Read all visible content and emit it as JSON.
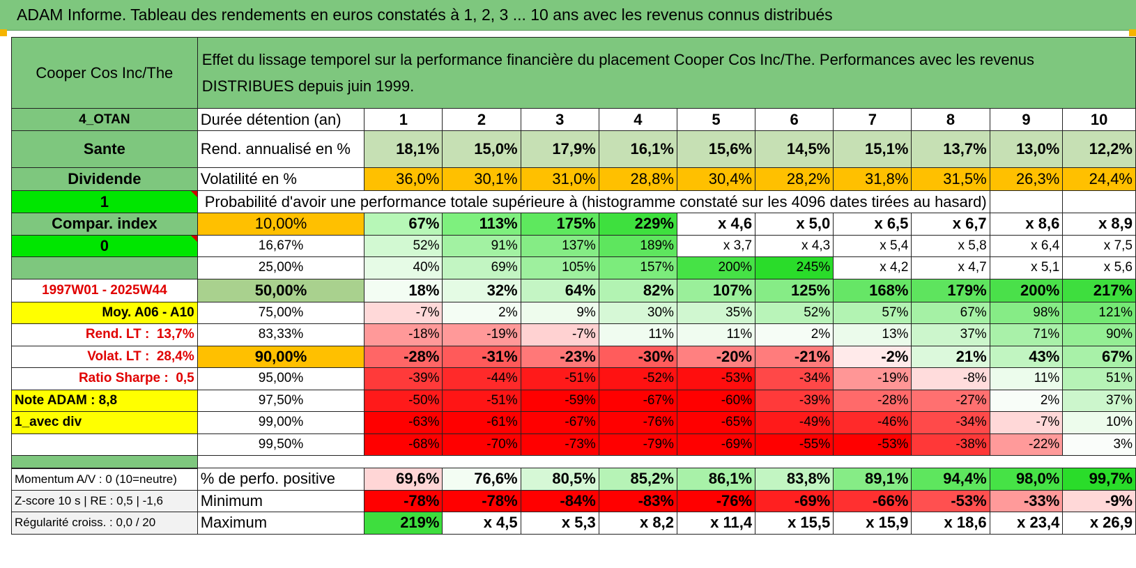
{
  "title": "ADAM Informe. Tableau des rendements en euros constatés à 1, 2, 3 ... 10 ans avec les revenus connus distribués",
  "header": {
    "asset": "Cooper Cos Inc/The",
    "description_line1": "Effet du lissage temporel sur la performance financière du placement Cooper Cos Inc/The. Performances avec les revenus",
    "description_line2": "DISTRIBUES depuis juin 1999."
  },
  "side": {
    "code": "4_OTAN",
    "sector": "Sante",
    "type": "Dividende",
    "flag1": "1",
    "compar_index": "Compar. index",
    "flag2": "0",
    "period": "1997W01 - 2025W44",
    "moy": "Moy. A06 - A10",
    "rend_lt_label": "Rend. LT :",
    "rend_lt_value": "13,7%",
    "volat_lt_label": "Volat. LT :",
    "volat_lt_value": "28,4%",
    "sharpe_label": "Ratio Sharpe :",
    "sharpe_value": "0,5",
    "note": "Note ADAM : 8,8",
    "avec_div": "1_avec div"
  },
  "stats_rows": {
    "duration_label": "Durée détention (an)",
    "years": [
      "1",
      "2",
      "3",
      "4",
      "5",
      "6",
      "7",
      "8",
      "9",
      "10"
    ],
    "rend_label": "Rend. annualisé en %",
    "rend": [
      "18,1%",
      "15,0%",
      "17,9%",
      "16,1%",
      "15,6%",
      "14,5%",
      "15,1%",
      "13,7%",
      "13,0%",
      "12,2%"
    ],
    "vol_label": "Volatilité en %",
    "vol": [
      "36,0%",
      "30,1%",
      "31,0%",
      "28,8%",
      "30,4%",
      "28,2%",
      "31,8%",
      "31,5%",
      "26,3%",
      "24,4%"
    ]
  },
  "probability_title": "Probabilité d'avoir une performance totale supérieure à (histogramme constaté sur les 4096 dates tirées au hasard)",
  "prob_rows": [
    {
      "p": "10,00%",
      "v": [
        "67%",
        "113%",
        "175%",
        "229%",
        "x 4,6",
        "x 5,0",
        "x 6,5",
        "x 6,7",
        "x 8,6",
        "x 8,9"
      ]
    },
    {
      "p": "16,67%",
      "v": [
        "52%",
        "91%",
        "137%",
        "189%",
        "x 3,7",
        "x 4,3",
        "x 5,4",
        "x 5,8",
        "x 6,4",
        "x 7,5"
      ]
    },
    {
      "p": "25,00%",
      "v": [
        "40%",
        "69%",
        "105%",
        "157%",
        "200%",
        "245%",
        "x 4,2",
        "x 4,7",
        "x 5,1",
        "x 5,6"
      ]
    },
    {
      "p": "50,00%",
      "v": [
        "18%",
        "32%",
        "64%",
        "82%",
        "107%",
        "125%",
        "168%",
        "179%",
        "200%",
        "217%"
      ]
    },
    {
      "p": "75,00%",
      "v": [
        "-7%",
        "2%",
        "9%",
        "30%",
        "35%",
        "52%",
        "57%",
        "67%",
        "98%",
        "121%"
      ]
    },
    {
      "p": "83,33%",
      "v": [
        "-18%",
        "-19%",
        "-7%",
        "11%",
        "11%",
        "2%",
        "13%",
        "37%",
        "71%",
        "90%"
      ]
    },
    {
      "p": "90,00%",
      "v": [
        "-28%",
        "-31%",
        "-23%",
        "-30%",
        "-20%",
        "-21%",
        "-2%",
        "21%",
        "43%",
        "67%"
      ]
    },
    {
      "p": "95,00%",
      "v": [
        "-39%",
        "-44%",
        "-51%",
        "-52%",
        "-53%",
        "-34%",
        "-19%",
        "-8%",
        "11%",
        "51%"
      ]
    },
    {
      "p": "97,50%",
      "v": [
        "-50%",
        "-51%",
        "-59%",
        "-67%",
        "-60%",
        "-39%",
        "-28%",
        "-27%",
        "2%",
        "37%"
      ]
    },
    {
      "p": "99,00%",
      "v": [
        "-63%",
        "-61%",
        "-67%",
        "-76%",
        "-65%",
        "-49%",
        "-46%",
        "-34%",
        "-7%",
        "10%"
      ]
    },
    {
      "p": "99,50%",
      "v": [
        "-68%",
        "-70%",
        "-73%",
        "-79%",
        "-69%",
        "-55%",
        "-53%",
        "-38%",
        "-22%",
        "3%"
      ]
    }
  ],
  "bottom_rows": [
    {
      "side": "Momentum A/V : 0 (10=neutre)",
      "label": "% de perfo. positive",
      "v": [
        "69,6%",
        "76,6%",
        "80,5%",
        "85,2%",
        "86,1%",
        "83,8%",
        "89,1%",
        "94,4%",
        "98,0%",
        "99,7%"
      ]
    },
    {
      "side": "Z-score 10 s | RE : 0,5 | -1,6",
      "label": "Minimum",
      "v": [
        "-78%",
        "-78%",
        "-84%",
        "-83%",
        "-76%",
        "-69%",
        "-66%",
        "-53%",
        "-33%",
        "-9%"
      ]
    },
    {
      "side": "Régularité croiss. : 0,0 / 20",
      "label": "Maximum",
      "v": [
        "219%",
        "x 4,5",
        "x 5,3",
        "x 8,2",
        "x 11,4",
        "x 15,5",
        "x 15,9",
        "x 18,6",
        "x 23,4",
        "x 26,9"
      ]
    }
  ],
  "colors": {
    "header_green": "#7ec77e",
    "light_green": "#a9d18e",
    "bright_green": "#00e600",
    "yellow": "#ffff00",
    "orange": "#ffc000",
    "red_text": "#e00000"
  },
  "cell_colors": {
    "rend": [
      "#c6e0b4",
      "#c6e0b4",
      "#c6e0b4",
      "#c6e0b4",
      "#c6e0b4",
      "#c6e0b4",
      "#c6e0b4",
      "#c6e0b4",
      "#c6e0b4",
      "#c6e0b4"
    ],
    "vol": [
      "#ffc000",
      "#ffc000",
      "#ffc000",
      "#ffc000",
      "#ffc000",
      "#ffc000",
      "#ffc000",
      "#ffc000",
      "#ffc000",
      "#ffc000"
    ],
    "prob": [
      [
        "#b7f7b7",
        "#7ef07e",
        "#5ee85e",
        "#3ee03e",
        "#ffffff",
        "#ffffff",
        "#ffffff",
        "#ffffff",
        "#ffffff",
        "#ffffff"
      ],
      [
        "#d2f9d2",
        "#a2f2a2",
        "#85ec85",
        "#5ee65e",
        "#ffffff",
        "#ffffff",
        "#ffffff",
        "#ffffff",
        "#ffffff",
        "#ffffff"
      ],
      [
        "#e6fbe6",
        "#c2f5c2",
        "#9ef09e",
        "#7cec7c",
        "#46e246",
        "#2adc2a",
        "#ffffff",
        "#ffffff",
        "#ffffff",
        "#ffffff"
      ],
      [
        "#f3fdf3",
        "#e4fbe4",
        "#c4f5c4",
        "#b2f3b2",
        "#9aef9a",
        "#86ec86",
        "#66e666",
        "#5ee45e",
        "#4ae04a",
        "#3ede3e"
      ],
      [
        "#ffd9d9",
        "#f4fdf4",
        "#eefced",
        "#d6f8d6",
        "#d0f7d0",
        "#b9f4b9",
        "#b2f3b2",
        "#a5f1a5",
        "#86ec86",
        "#74e974"
      ],
      [
        "#ff9999",
        "#ff9999",
        "#ffd2d2",
        "#f0fcf0",
        "#f0fcf0",
        "#f6fdf6",
        "#ebfbeb",
        "#ccf6cc",
        "#a9f1a9",
        "#94ee94"
      ],
      [
        "#ff6666",
        "#ff5a5a",
        "#ff7878",
        "#ff5c5c",
        "#ff8080",
        "#ff7c7c",
        "#ffeaea",
        "#dcf9dc",
        "#c1f5c1",
        "#a8f1a8"
      ],
      [
        "#ff3a3a",
        "#ff2a2a",
        "#ff1a1a",
        "#ff1212",
        "#ff0e0e",
        "#ff4848",
        "#ff9696",
        "#ffdcdc",
        "#ecfcec",
        "#b6f3b6"
      ],
      [
        "#ff1a1a",
        "#ff1515",
        "#ff0000",
        "#ff0000",
        "#ff0000",
        "#ff3a3a",
        "#ff6a6a",
        "#ff7070",
        "#f8fdf8",
        "#ccf6cc"
      ],
      [
        "#ff0000",
        "#ff0000",
        "#ff0000",
        "#ff0000",
        "#ff0000",
        "#ff1a1a",
        "#ff2a2a",
        "#ff4a4a",
        "#ffd8d8",
        "#edfcec"
      ],
      [
        "#ff0000",
        "#ff0000",
        "#ff0000",
        "#ff0000",
        "#ff0000",
        "#ff0000",
        "#ff0000",
        "#ff3838",
        "#ff9a9a",
        "#fafdfa"
      ]
    ],
    "bottom": [
      [
        "#ffd6d6",
        "#f3fdf3",
        "#d6f8d6",
        "#b6f3b6",
        "#a8f1a8",
        "#c2f5c2",
        "#86ec86",
        "#5ee65e",
        "#46e246",
        "#2adc2a"
      ],
      [
        "#ff0000",
        "#ff0000",
        "#ff0000",
        "#ff0000",
        "#ff0000",
        "#ff2020",
        "#ff3030",
        "#ff5050",
        "#ff9a9a",
        "#ffd8d8"
      ],
      [
        "#3ede3e",
        "#ffffff",
        "#ffffff",
        "#ffffff",
        "#ffffff",
        "#ffffff",
        "#ffffff",
        "#ffffff",
        "#ffffff",
        "#ffffff"
      ]
    ]
  }
}
